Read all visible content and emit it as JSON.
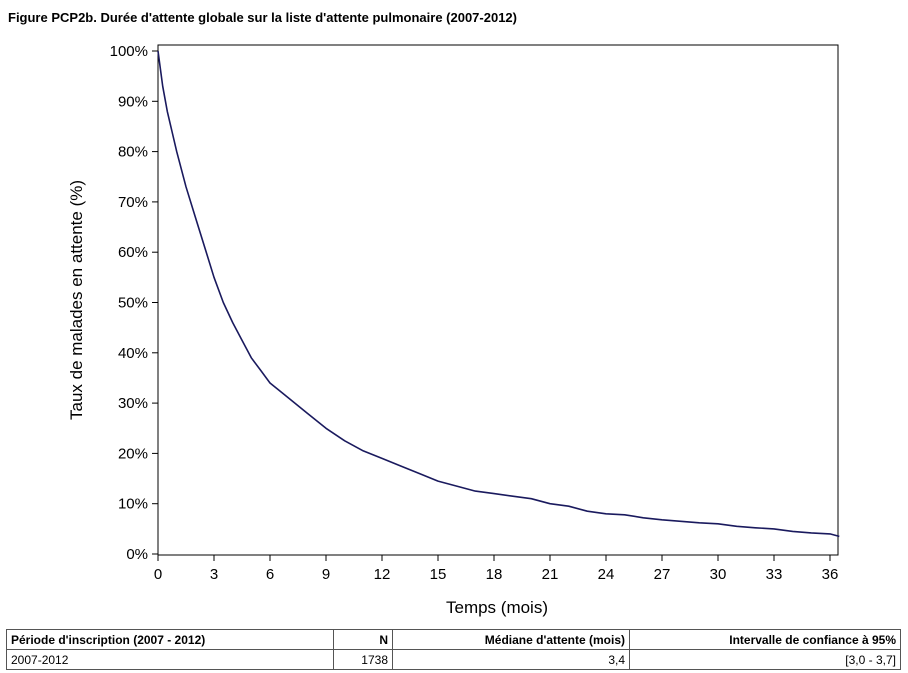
{
  "title": "Figure PCP2b. Durée d'attente globale sur la liste d'attente pulmonaire (2007-2012)",
  "chart_data": {
    "type": "line",
    "xlabel": "Temps (mois)",
    "ylabel": "Taux de malades en attente (%)",
    "xlim": [
      0,
      36.5
    ],
    "ylim": [
      0,
      100
    ],
    "x_ticks": [
      0,
      3,
      6,
      9,
      12,
      15,
      18,
      21,
      24,
      27,
      30,
      33,
      36
    ],
    "x_tick_labels": [
      "0",
      "3",
      "6",
      "9",
      "12",
      "15",
      "18",
      "21",
      "24",
      "27",
      "30",
      "33",
      "36"
    ],
    "y_ticks": [
      0,
      10,
      20,
      30,
      40,
      50,
      60,
      70,
      80,
      90,
      100
    ],
    "y_tick_labels": [
      "0%",
      "10%",
      "20%",
      "30%",
      "40%",
      "50%",
      "60%",
      "70%",
      "80%",
      "90%",
      "100%"
    ],
    "grid": false,
    "series": [
      {
        "color": "#1a1a5e",
        "x": [
          0,
          0.25,
          0.5,
          0.75,
          1,
          1.5,
          2,
          2.5,
          3,
          3.5,
          4,
          4.5,
          5,
          5.5,
          6,
          6.5,
          7,
          8,
          9,
          10,
          11,
          12,
          13,
          14,
          15,
          16,
          17,
          18,
          19,
          20,
          21,
          22,
          23,
          24,
          25,
          26,
          27,
          28,
          29,
          30,
          31,
          32,
          33,
          34,
          35,
          36,
          36.5
        ],
        "y": [
          100,
          93,
          88,
          84,
          80,
          73,
          67,
          61,
          55,
          50,
          46,
          42.5,
          39,
          36.5,
          34,
          32.5,
          31,
          28,
          25,
          22.5,
          20.5,
          19,
          17.5,
          16,
          14.5,
          13.5,
          12.5,
          12,
          11.5,
          11,
          10,
          9.5,
          8.5,
          8,
          7.8,
          7.2,
          6.8,
          6.5,
          6.2,
          6,
          5.5,
          5.2,
          5,
          4.5,
          4.2,
          4,
          3.5
        ]
      }
    ]
  },
  "table": {
    "headers": [
      "Période d'inscription (2007 - 2012)",
      "N",
      "Médiane d'attente (mois)",
      "Intervalle de confiance à 95%"
    ],
    "rows": [
      [
        "2007-2012",
        "1738",
        "3,4",
        "[3,0 - 3,7]"
      ]
    ]
  }
}
